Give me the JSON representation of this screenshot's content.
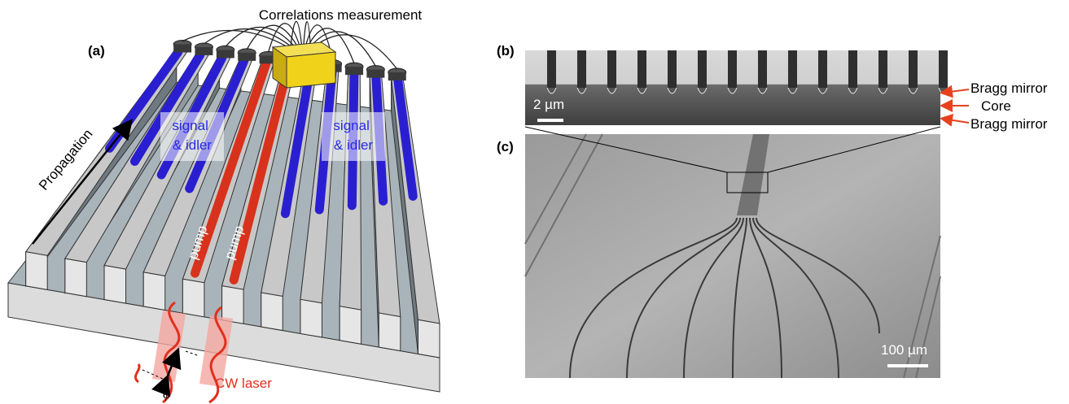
{
  "panel_a": {
    "label": "(a)",
    "title": "Correlations measurement",
    "propagation": "Propagation",
    "signal_idler": [
      [
        "signal",
        "& idler"
      ],
      [
        "signal",
        "& idler"
      ]
    ],
    "pump": [
      "pump",
      "pump"
    ],
    "laser": "CW laser",
    "phase": "φ"
  },
  "panel_b": {
    "label": "(b)",
    "scale_bar": "2 µm",
    "layers": [
      "Bragg mirror",
      "Core",
      "Bragg mirror"
    ]
  },
  "panel_c": {
    "label": "(c)",
    "scale_bar": "100 µm"
  }
}
